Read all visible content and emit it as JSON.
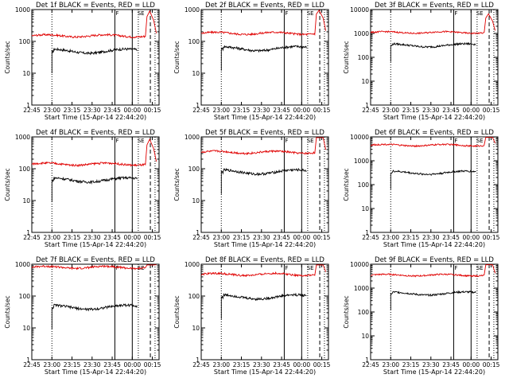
{
  "figure": {
    "xlabel": "Start Time (15-Apr-14 22:44:20)",
    "ylabel": "Counts/sec",
    "colors": {
      "events": "#000000",
      "lld": "#e00000",
      "axes": "#000000"
    }
  },
  "chart_data": [
    {
      "type": "line",
      "title": "Det 1f BLACK = Events, RED = LLD",
      "xlabel": "Start Time (15-Apr-14 22:44:20)",
      "ylabel": "Counts/sec",
      "y_scale": "log",
      "ylim": [
        1,
        1000
      ],
      "y_ticks": [
        "1",
        "10",
        "100",
        "1000"
      ],
      "x_ticks": [
        "22:45",
        "23:00",
        "23:15",
        "23:30",
        "23:45",
        "00:00",
        "00:15"
      ],
      "xlim_minutes": [
        0,
        95
      ],
      "markers": [
        "F",
        "SE"
      ],
      "series": [
        {
          "role": "events",
          "color": "#000000",
          "start_min": 15,
          "end_min": 79,
          "level": 50
        },
        {
          "role": "lld",
          "color": "#e00000",
          "start_min": 0,
          "end_min": 85,
          "level": 150
        }
      ]
    },
    {
      "type": "line",
      "title": "Det 2f BLACK = Events, RED = LLD",
      "xlabel": "Start Time (15-Apr-14 22:44:20)",
      "ylabel": "Counts/sec",
      "y_scale": "log",
      "ylim": [
        1,
        1000
      ],
      "y_ticks": [
        "1",
        "10",
        "100",
        "1000"
      ],
      "x_ticks": [
        "22:45",
        "23:00",
        "23:15",
        "23:30",
        "23:45",
        "00:00",
        "00:15"
      ],
      "xlim_minutes": [
        0,
        95
      ],
      "markers": [
        "F",
        "SE"
      ],
      "series": [
        {
          "role": "events",
          "color": "#000000",
          "start_min": 15,
          "end_min": 79,
          "level": 60
        },
        {
          "role": "lld",
          "color": "#e00000",
          "start_min": 0,
          "end_min": 85,
          "level": 180
        }
      ]
    },
    {
      "type": "line",
      "title": "Det 3f BLACK = Events, RED = LLD",
      "xlabel": "Start Time (15-Apr-14 22:44:20)",
      "ylabel": "Counts/sec",
      "y_scale": "log",
      "ylim": [
        1,
        10000
      ],
      "y_ticks": [
        "1",
        "10",
        "100",
        "1000",
        "10000"
      ],
      "x_ticks": [
        "22:45",
        "23:00",
        "23:15",
        "23:30",
        "23:45",
        "00:00",
        "00:15"
      ],
      "xlim_minutes": [
        0,
        95
      ],
      "markers": [
        "F",
        "SE"
      ],
      "series": [
        {
          "role": "events",
          "color": "#000000",
          "start_min": 15,
          "end_min": 79,
          "level": 320
        },
        {
          "role": "lld",
          "color": "#e00000",
          "start_min": 0,
          "end_min": 85,
          "level": 1100
        }
      ]
    },
    {
      "type": "line",
      "title": "Det 4f BLACK = Events, RED = LLD",
      "xlabel": "Start Time (15-Apr-14 22:44:20)",
      "ylabel": "Counts/sec",
      "y_scale": "log",
      "ylim": [
        1,
        1000
      ],
      "y_ticks": [
        "1",
        "10",
        "100",
        "1000"
      ],
      "x_ticks": [
        "22:45",
        "23:00",
        "23:15",
        "23:30",
        "23:45",
        "00:00",
        "00:15"
      ],
      "xlim_minutes": [
        0,
        95
      ],
      "markers": [
        "F",
        "SE"
      ],
      "series": [
        {
          "role": "events",
          "color": "#000000",
          "start_min": 15,
          "end_min": 79,
          "level": 45
        },
        {
          "role": "lld",
          "color": "#e00000",
          "start_min": 0,
          "end_min": 85,
          "level": 140
        }
      ]
    },
    {
      "type": "line",
      "title": "Det 5f BLACK = Events, RED = LLD",
      "xlabel": "Start Time (15-Apr-14 22:44:20)",
      "ylabel": "Counts/sec",
      "y_scale": "log",
      "ylim": [
        1,
        1000
      ],
      "y_ticks": [
        "1",
        "10",
        "100",
        "1000"
      ],
      "x_ticks": [
        "22:45",
        "23:00",
        "23:15",
        "23:30",
        "23:45",
        "00:00",
        "00:15"
      ],
      "xlim_minutes": [
        0,
        95
      ],
      "markers": [
        "F",
        "SE"
      ],
      "series": [
        {
          "role": "events",
          "color": "#000000",
          "start_min": 15,
          "end_min": 79,
          "level": 80
        },
        {
          "role": "lld",
          "color": "#e00000",
          "start_min": 0,
          "end_min": 85,
          "level": 330
        }
      ]
    },
    {
      "type": "line",
      "title": "Det 6f BLACK = Events, RED = LLD",
      "xlabel": "Start Time (15-Apr-14 22:44:20)",
      "ylabel": "Counts/sec",
      "y_scale": "log",
      "ylim": [
        1,
        10000
      ],
      "y_ticks": [
        "1",
        "10",
        "100",
        "1000",
        "10000"
      ],
      "x_ticks": [
        "22:45",
        "23:00",
        "23:15",
        "23:30",
        "23:45",
        "00:00",
        "00:15"
      ],
      "xlim_minutes": [
        0,
        95
      ],
      "markers": [
        "F",
        "SE"
      ],
      "series": [
        {
          "role": "events",
          "color": "#000000",
          "start_min": 15,
          "end_min": 79,
          "level": 320
        },
        {
          "role": "lld",
          "color": "#e00000",
          "start_min": 0,
          "end_min": 85,
          "level": 4500
        }
      ]
    },
    {
      "type": "line",
      "title": "Det 7f BLACK = Events, RED = LLD",
      "xlabel": "Start Time (15-Apr-14 22:44:20)",
      "ylabel": "Counts/sec",
      "y_scale": "log",
      "ylim": [
        1,
        1000
      ],
      "y_ticks": [
        "1",
        "10",
        "100",
        "1000"
      ],
      "x_ticks": [
        "22:45",
        "23:00",
        "23:15",
        "23:30",
        "23:45",
        "00:00",
        "00:15"
      ],
      "xlim_minutes": [
        0,
        95
      ],
      "markers": [
        "F",
        "SE"
      ],
      "series": [
        {
          "role": "events",
          "color": "#000000",
          "start_min": 15,
          "end_min": 79,
          "level": 45
        },
        {
          "role": "lld",
          "color": "#e00000",
          "start_min": 0,
          "end_min": 85,
          "level": 800
        }
      ]
    },
    {
      "type": "line",
      "title": "Det 8f BLACK = Events, RED = LLD",
      "xlabel": "Start Time (15-Apr-14 22:44:20)",
      "ylabel": "Counts/sec",
      "y_scale": "log",
      "ylim": [
        1,
        1000
      ],
      "y_ticks": [
        "1",
        "10",
        "100",
        "1000"
      ],
      "x_ticks": [
        "22:45",
        "23:00",
        "23:15",
        "23:30",
        "23:45",
        "00:00",
        "00:15"
      ],
      "xlim_minutes": [
        0,
        95
      ],
      "markers": [
        "F",
        "SE"
      ],
      "series": [
        {
          "role": "events",
          "color": "#000000",
          "start_min": 15,
          "end_min": 79,
          "level": 95
        },
        {
          "role": "lld",
          "color": "#e00000",
          "start_min": 0,
          "end_min": 85,
          "level": 480
        }
      ]
    },
    {
      "type": "line",
      "title": "Det 9f BLACK = Events, RED = LLD",
      "xlabel": "Start Time (15-Apr-14 22:44:20)",
      "ylabel": "Counts/sec",
      "y_scale": "log",
      "ylim": [
        1,
        10000
      ],
      "y_ticks": [
        "1",
        "10",
        "100",
        "1000",
        "10000"
      ],
      "x_ticks": [
        "22:45",
        "23:00",
        "23:15",
        "23:30",
        "23:45",
        "00:00",
        "00:15"
      ],
      "xlim_minutes": [
        0,
        95
      ],
      "markers": [
        "F",
        "SE"
      ],
      "series": [
        {
          "role": "events",
          "color": "#000000",
          "start_min": 15,
          "end_min": 79,
          "level": 600
        },
        {
          "role": "lld",
          "color": "#e00000",
          "start_min": 0,
          "end_min": 85,
          "level": 3500
        }
      ]
    }
  ]
}
